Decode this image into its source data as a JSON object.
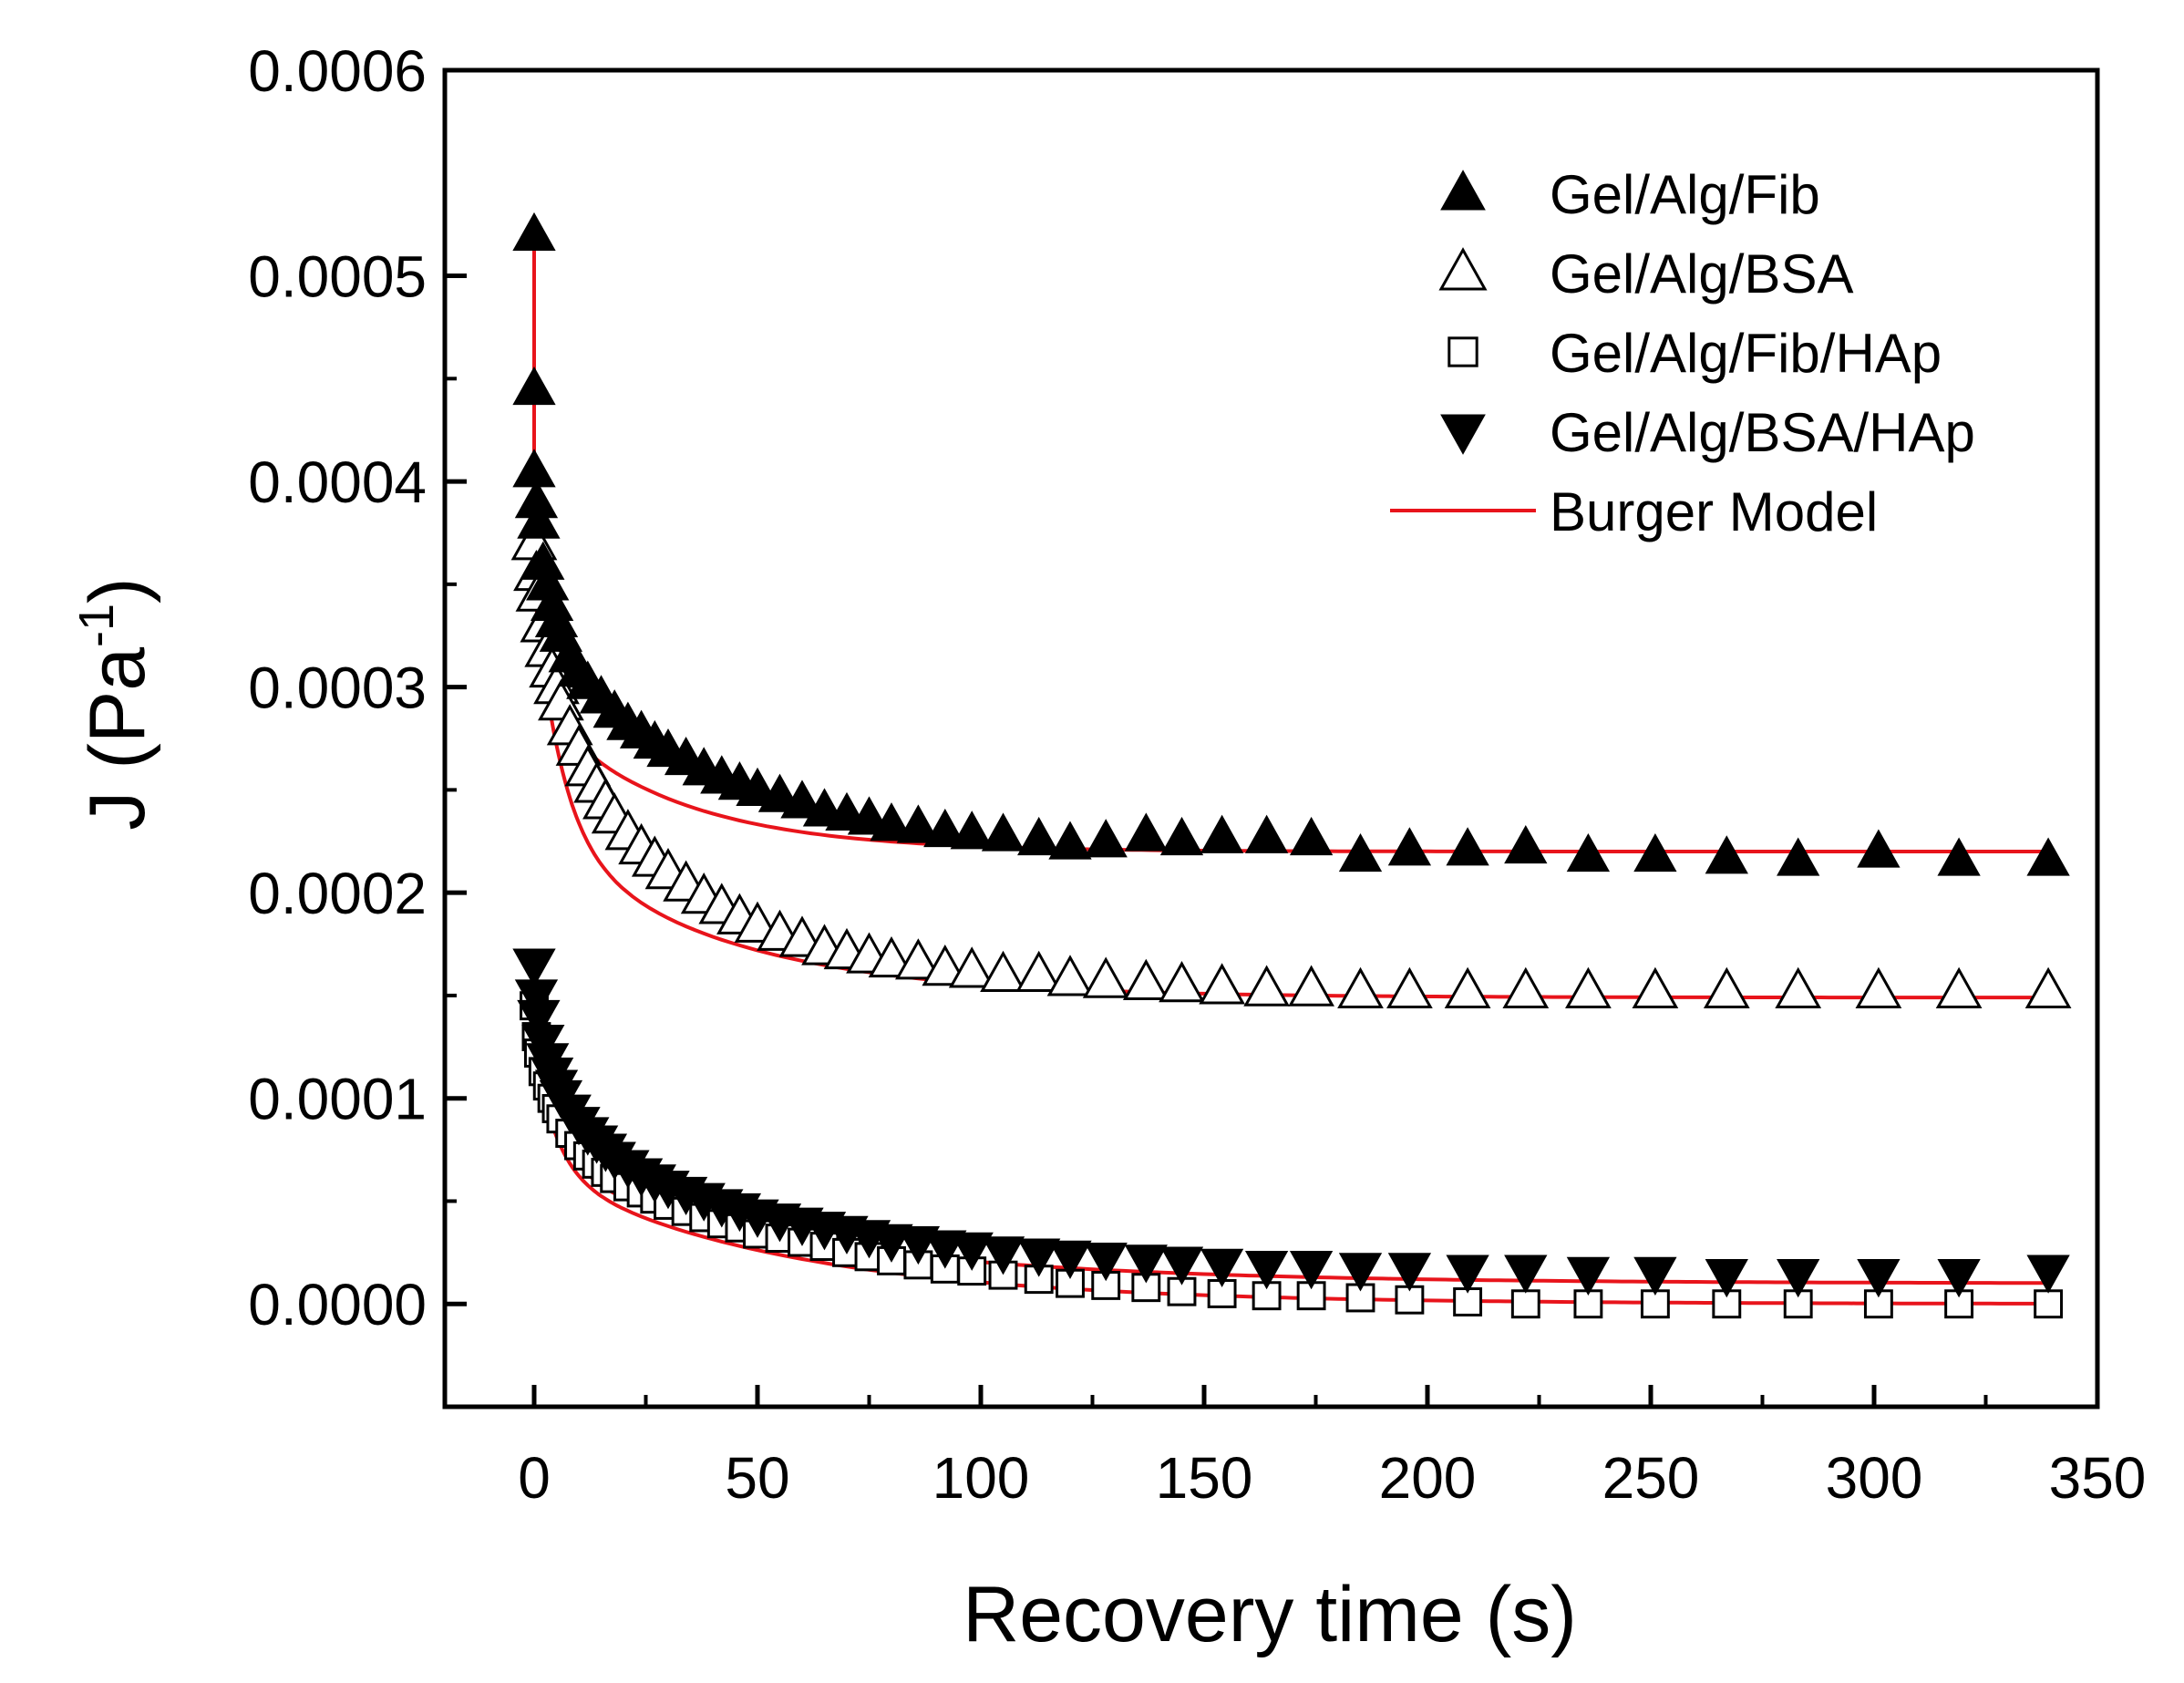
{
  "chart_data": {
    "type": "scatter",
    "title": "",
    "xlabel": "Recovery time (s)",
    "ylabel_main": "J (Pa",
    "ylabel_sup": "-1",
    "ylabel_close": ")",
    "xlim": [
      -20,
      350
    ],
    "ylim": [
      -5e-05,
      0.0006
    ],
    "xticks": [
      0,
      50,
      100,
      150,
      200,
      250,
      300,
      350
    ],
    "xtick_labels": [
      "0",
      "50",
      "100",
      "150",
      "200",
      "250",
      "300",
      "350"
    ],
    "yticks": [
      0.0,
      0.0001,
      0.0002,
      0.0003,
      0.0004,
      0.0005,
      0.0006
    ],
    "ytick_labels": [
      "0.0000",
      "0.0001",
      "0.0002",
      "0.0003",
      "0.0004",
      "0.0005",
      "0.0006"
    ],
    "x_minor_step": 25,
    "y_minor_step": 5e-05,
    "grid": false,
    "legend_position": "top-right",
    "model_color": "#e8141b",
    "series": [
      {
        "name": "Gel/Alg/Fib",
        "marker": "triangle-up-filled",
        "points": [
          [
            0,
            0.00052
          ],
          [
            0,
            0.000445
          ],
          [
            0,
            0.000405
          ],
          [
            0.5,
            0.00039
          ],
          [
            1,
            0.00038
          ],
          [
            2,
            0.00036
          ],
          [
            3,
            0.00035
          ],
          [
            4,
            0.00034
          ],
          [
            5,
            0.000332
          ],
          [
            6,
            0.000325
          ],
          [
            8,
            0.000315
          ],
          [
            10,
            0.000308
          ],
          [
            12,
            0.000302
          ],
          [
            15,
            0.000295
          ],
          [
            18,
            0.000288
          ],
          [
            21,
            0.000282
          ],
          [
            24,
            0.000278
          ],
          [
            27,
            0.000273
          ],
          [
            30,
            0.000269
          ],
          [
            34,
            0.000265
          ],
          [
            38,
            0.00026
          ],
          [
            42,
            0.000256
          ],
          [
            46,
            0.000253
          ],
          [
            50,
            0.00025
          ],
          [
            55,
            0.000247
          ],
          [
            60,
            0.000244
          ],
          [
            65,
            0.00024
          ],
          [
            70,
            0.000238
          ],
          [
            75,
            0.000236
          ],
          [
            80,
            0.000233
          ],
          [
            86,
            0.000232
          ],
          [
            92,
            0.00023
          ],
          [
            98,
            0.000229
          ],
          [
            105,
            0.000228
          ],
          [
            113,
            0.000226
          ],
          [
            120,
            0.000224
          ],
          [
            128,
            0.000225
          ],
          [
            137,
            0.000228
          ],
          [
            145,
            0.000226
          ],
          [
            154,
            0.000227
          ],
          [
            164,
            0.000227
          ],
          [
            174,
            0.000226
          ],
          [
            185,
            0.000218
          ],
          [
            196,
            0.000221
          ],
          [
            209,
            0.000221
          ],
          [
            222,
            0.000222
          ],
          [
            236,
            0.000218
          ],
          [
            251,
            0.000218
          ],
          [
            267,
            0.000217
          ],
          [
            283,
            0.000216
          ],
          [
            301,
            0.00022
          ],
          [
            319,
            0.000216
          ],
          [
            339,
            0.000216
          ]
        ],
        "model": {
          "j0": 0.00022,
          "a1": 0.0001,
          "tau1": 3,
          "a2": 7e-05,
          "tau2": 30
        }
      },
      {
        "name": "Gel/Alg/BSA",
        "marker": "triangle-up-open",
        "points": [
          [
            0,
            0.00037
          ],
          [
            0.5,
            0.000355
          ],
          [
            1,
            0.000345
          ],
          [
            2,
            0.00033
          ],
          [
            3,
            0.000318
          ],
          [
            4,
            0.000308
          ],
          [
            5,
            0.0003
          ],
          [
            6,
            0.000292
          ],
          [
            8,
            0.00028
          ],
          [
            10,
            0.00027
          ],
          [
            12,
            0.00026
          ],
          [
            14,
            0.000252
          ],
          [
            16,
            0.000244
          ],
          [
            18,
            0.000237
          ],
          [
            21,
            0.000229
          ],
          [
            24,
            0.000222
          ],
          [
            27,
            0.000216
          ],
          [
            30,
            0.00021
          ],
          [
            34,
            0.000204
          ],
          [
            38,
            0.000198
          ],
          [
            42,
            0.000193
          ],
          [
            46,
            0.000188
          ],
          [
            50,
            0.000184
          ],
          [
            55,
            0.00018
          ],
          [
            60,
            0.000177
          ],
          [
            65,
            0.000173
          ],
          [
            70,
            0.000171
          ],
          [
            75,
            0.000169
          ],
          [
            80,
            0.000167
          ],
          [
            86,
            0.000166
          ],
          [
            92,
            0.000163
          ],
          [
            98,
            0.000162
          ],
          [
            105,
            0.00016
          ],
          [
            113,
            0.00016
          ],
          [
            120,
            0.000158
          ],
          [
            128,
            0.000157
          ],
          [
            137,
            0.000156
          ],
          [
            145,
            0.000155
          ],
          [
            154,
            0.000154
          ],
          [
            164,
            0.000153
          ],
          [
            174,
            0.000153
          ],
          [
            185,
            0.000152
          ],
          [
            196,
            0.000152
          ],
          [
            209,
            0.000152
          ],
          [
            222,
            0.000152
          ],
          [
            236,
            0.000152
          ],
          [
            251,
            0.000152
          ],
          [
            267,
            0.000152
          ],
          [
            283,
            0.000152
          ],
          [
            301,
            0.000152
          ],
          [
            319,
            0.000152
          ],
          [
            339,
            0.000152
          ]
        ],
        "model": {
          "j0": 0.000149,
          "a1": 0.00012,
          "tau1": 6,
          "a2": 8e-05,
          "tau2": 40
        }
      },
      {
        "name": "Gel/Alg/Fib/HAp",
        "marker": "square-open",
        "points": [
          [
            0,
            0.000145
          ],
          [
            0.5,
            0.00013
          ],
          [
            1,
            0.000122
          ],
          [
            2,
            0.000113
          ],
          [
            3,
            0.000106
          ],
          [
            4,
            0.0001
          ],
          [
            5,
            9.5e-05
          ],
          [
            6,
            9e-05
          ],
          [
            8,
            8.3e-05
          ],
          [
            10,
            7.7e-05
          ],
          [
            12,
            7.2e-05
          ],
          [
            14,
            6.8e-05
          ],
          [
            16,
            6.4e-05
          ],
          [
            18,
            6.1e-05
          ],
          [
            21,
            5.7e-05
          ],
          [
            24,
            5.4e-05
          ],
          [
            27,
            5.1e-05
          ],
          [
            30,
            4.8e-05
          ],
          [
            34,
            4.5e-05
          ],
          [
            38,
            4.2e-05
          ],
          [
            42,
            3.9e-05
          ],
          [
            46,
            3.7e-05
          ],
          [
            50,
            3.4e-05
          ],
          [
            55,
            3.2e-05
          ],
          [
            60,
            3e-05
          ],
          [
            65,
            2.8e-05
          ],
          [
            70,
            2.5e-05
          ],
          [
            75,
            2.3e-05
          ],
          [
            80,
            2.1e-05
          ],
          [
            86,
            1.9e-05
          ],
          [
            92,
            1.7e-05
          ],
          [
            98,
            1.6e-05
          ],
          [
            105,
            1.4e-05
          ],
          [
            113,
            1.2e-05
          ],
          [
            120,
            1e-05
          ],
          [
            128,
            9e-06
          ],
          [
            137,
            8e-06
          ],
          [
            145,
            6e-06
          ],
          [
            154,
            5e-06
          ],
          [
            164,
            4e-06
          ],
          [
            174,
            4e-06
          ],
          [
            185,
            3e-06
          ],
          [
            196,
            2e-06
          ],
          [
            209,
            1e-06
          ],
          [
            222,
            0.0
          ],
          [
            236,
            0.0
          ],
          [
            251,
            0.0
          ],
          [
            267,
            0.0
          ],
          [
            283,
            0.0
          ],
          [
            301,
            0.0
          ],
          [
            319,
            0.0
          ],
          [
            339,
            0.0
          ]
        ],
        "model": {
          "j0": 0.0,
          "a1": 6e-05,
          "tau1": 5,
          "a2": 6.5e-05,
          "tau2": 55
        }
      },
      {
        "name": "Gel/Alg/BSA/HAp",
        "marker": "triangle-down-filled",
        "points": [
          [
            0,
            0.000165
          ],
          [
            0.5,
            0.00015
          ],
          [
            1,
            0.00014
          ],
          [
            2,
            0.000128
          ],
          [
            3,
            0.000119
          ],
          [
            4,
            0.000112
          ],
          [
            5,
            0.000106
          ],
          [
            6,
            0.000101
          ],
          [
            8,
            9.4e-05
          ],
          [
            10,
            8.8e-05
          ],
          [
            12,
            8.3e-05
          ],
          [
            14,
            7.9e-05
          ],
          [
            16,
            7.5e-05
          ],
          [
            18,
            7.1e-05
          ],
          [
            21,
            6.7e-05
          ],
          [
            24,
            6.3e-05
          ],
          [
            27,
            6e-05
          ],
          [
            30,
            5.7e-05
          ],
          [
            34,
            5.4e-05
          ],
          [
            38,
            5.1e-05
          ],
          [
            42,
            4.8e-05
          ],
          [
            46,
            4.6e-05
          ],
          [
            50,
            4.3e-05
          ],
          [
            55,
            4.1e-05
          ],
          [
            60,
            3.9e-05
          ],
          [
            65,
            3.7e-05
          ],
          [
            70,
            3.5e-05
          ],
          [
            75,
            3.3e-05
          ],
          [
            80,
            3.1e-05
          ],
          [
            86,
            3e-05
          ],
          [
            92,
            2.8e-05
          ],
          [
            98,
            2.7e-05
          ],
          [
            105,
            2.5e-05
          ],
          [
            113,
            2.4e-05
          ],
          [
            120,
            2.3e-05
          ],
          [
            128,
            2.2e-05
          ],
          [
            137,
            2.1e-05
          ],
          [
            145,
            2e-05
          ],
          [
            154,
            1.9e-05
          ],
          [
            164,
            1.8e-05
          ],
          [
            174,
            1.8e-05
          ],
          [
            185,
            1.7e-05
          ],
          [
            196,
            1.7e-05
          ],
          [
            209,
            1.6e-05
          ],
          [
            222,
            1.6e-05
          ],
          [
            236,
            1.5e-05
          ],
          [
            251,
            1.5e-05
          ],
          [
            267,
            1.4e-05
          ],
          [
            283,
            1.4e-05
          ],
          [
            301,
            1.4e-05
          ],
          [
            319,
            1.4e-05
          ],
          [
            339,
            1.6e-05
          ]
        ],
        "model": {
          "j0": 1e-05,
          "a1": 6e-05,
          "tau1": 6,
          "a2": 5.5e-05,
          "tau2": 60
        }
      }
    ],
    "model_series_name": "Burger Model"
  }
}
